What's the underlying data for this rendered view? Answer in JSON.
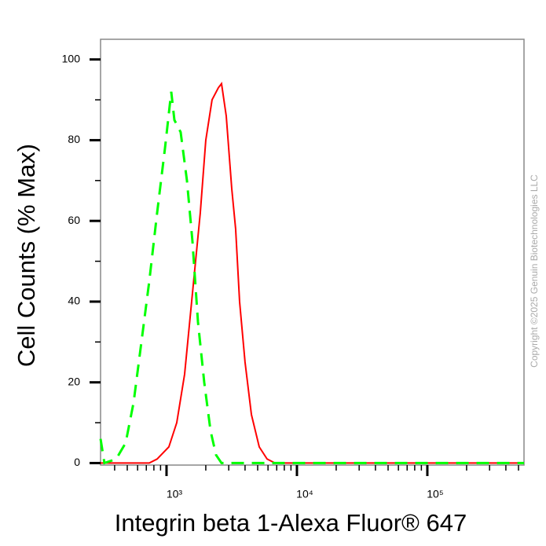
{
  "chart_data": {
    "type": "line",
    "xlabel": "Integrin beta 1-Alexa Fluor® 647",
    "ylabel": "Cell Counts (% Max)",
    "annotation": "Copyright ©2025 Genuin Biotechnologies LLC",
    "xscale": "log",
    "xlim": [
      312,
      551000
    ],
    "ylim": [
      -0.5,
      105
    ],
    "xticks": [
      {
        "value": 1000,
        "label": "10³"
      },
      {
        "value": 10000,
        "label": "10⁴"
      },
      {
        "value": 100000,
        "label": "10⁵"
      }
    ],
    "xminorticks": [
      400,
      500,
      600,
      700,
      800,
      900,
      2000,
      3000,
      4000,
      5000,
      6000,
      7000,
      8000,
      9000,
      20000,
      30000,
      40000,
      50000,
      60000,
      70000,
      80000,
      90000,
      200000,
      300000,
      400000,
      500000
    ],
    "yticks": [
      0,
      20,
      40,
      60,
      80,
      100
    ],
    "yminorticks": [
      10,
      30,
      50,
      70,
      90
    ],
    "grid": false,
    "series": [
      {
        "color": "#ff0000",
        "dash": false,
        "x": [
          312,
          737,
          847,
          1042,
          1198,
          1376,
          1580,
          1815,
          2000,
          2234,
          2498,
          2641,
          2870,
          3163,
          3388,
          3633,
          4000,
          4477,
          5140,
          5902,
          6780,
          551000
        ],
        "values": [
          0,
          0,
          1,
          4,
          10,
          22,
          42,
          62,
          80,
          90,
          93,
          94,
          86,
          68,
          58,
          40,
          25,
          12,
          4,
          1,
          0,
          0
        ]
      },
      {
        "color": "#00ff00",
        "dash": true,
        "x": [
          312,
          334,
          411,
          486,
          559,
          642,
          737,
          847,
          973,
          1087,
          1149,
          1283,
          1434,
          1580,
          1742,
          1946,
          2175,
          2398,
          2641,
          551000
        ],
        "values": [
          6,
          0,
          1,
          5,
          15,
          30,
          45,
          62,
          78,
          92,
          85,
          82,
          70,
          55,
          35,
          20,
          8,
          2,
          0,
          0
        ]
      }
    ]
  }
}
